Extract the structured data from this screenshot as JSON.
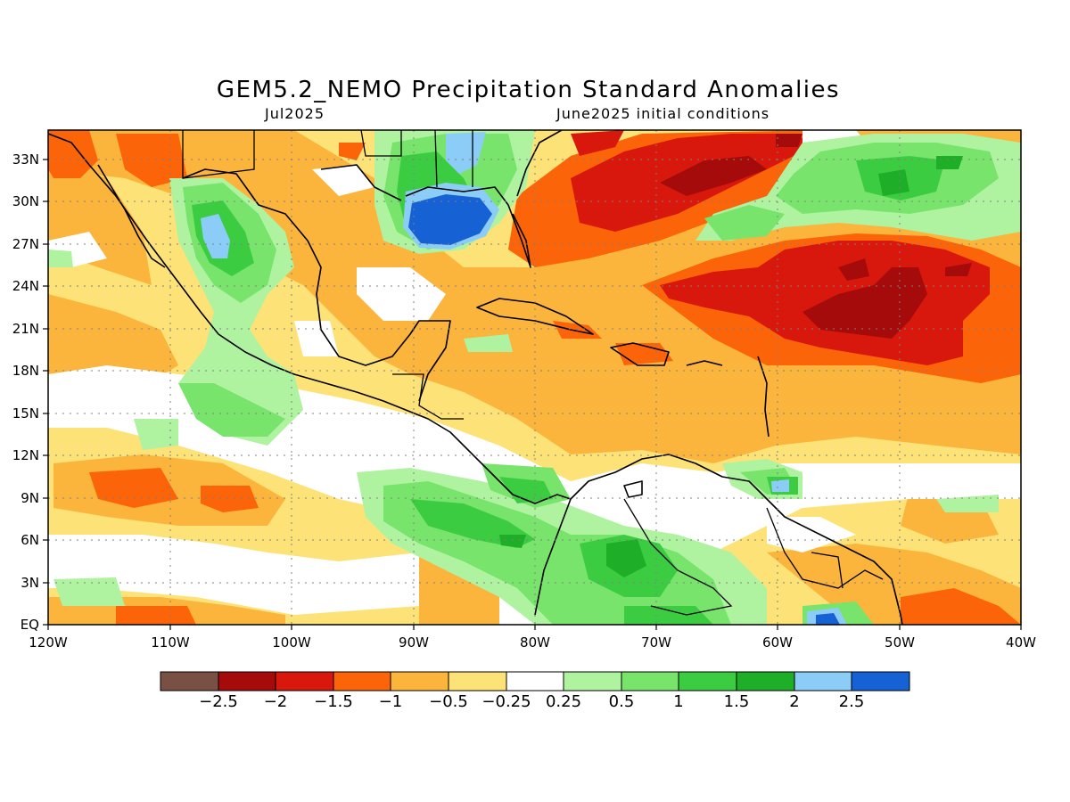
{
  "title": "GEM5.2_NEMO Precipitation Standard Anomalies",
  "subtitle_left": "Jul2025",
  "subtitle_right": "June2025 initial conditions",
  "map": {
    "region": "Caribbean, Gulf of Mexico, Central America, western Atlantic",
    "lon_range": [
      -120,
      -40
    ],
    "lat_range": [
      0,
      35
    ],
    "grid": "dotted"
  },
  "axes": {
    "lon_labels": [
      "120W",
      "110W",
      "100W",
      "90W",
      "80W",
      "70W",
      "60W",
      "50W",
      "40W"
    ],
    "lat_labels": [
      "EQ",
      "3N",
      "6N",
      "9N",
      "12N",
      "15N",
      "18N",
      "21N",
      "24N",
      "27N",
      "30N",
      "33N"
    ]
  },
  "colorbar": {
    "colors": [
      "#7a4f44",
      "#a50b0b",
      "#d8180d",
      "#fb6408",
      "#fbb43c",
      "#fde277",
      "#ffffff",
      "#aff3a1",
      "#78e46c",
      "#3ccc42",
      "#1fae27",
      "#8ccdf7",
      "#1661d3"
    ],
    "labels": [
      "−2.5",
      "−2",
      "−1.5",
      "−1",
      "−0.5",
      "−0.25",
      "0.25",
      "0.5",
      "1",
      "1.5",
      "2",
      "2.5"
    ]
  },
  "anomaly_regions": [
    {
      "name": "north-atlantic-dry-band",
      "category": "−2"
    },
    {
      "name": "subtropical-atlantic-dry-core",
      "category": "−2"
    },
    {
      "name": "gulf-of-mexico-wet",
      "category": "2.5"
    },
    {
      "name": "sierra-madre-wet",
      "category": "1.5"
    },
    {
      "name": "east-pacific-wet-band",
      "category": "1"
    },
    {
      "name": "northern-south-america-wet",
      "category": "1.5"
    },
    {
      "name": "caribbean-dry-band",
      "category": "−0.5"
    }
  ]
}
